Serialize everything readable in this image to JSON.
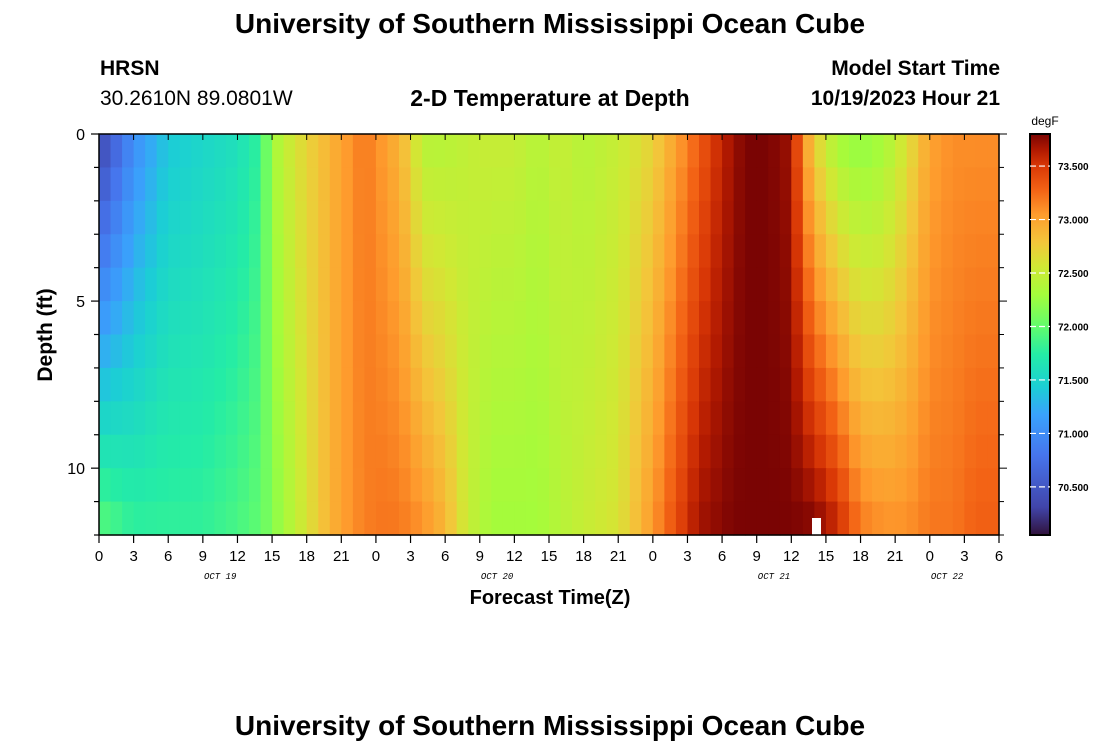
{
  "header": {
    "title": "University of Southern Mississippi Ocean Cube",
    "station": "HRSN",
    "coords": "30.2610N  89.0801W",
    "plot_title": "2-D Temperature at Depth",
    "model_label": "Model Start Time",
    "model_time": "10/19/2023 Hour 21"
  },
  "footer": {
    "title": "University of Southern Mississippi Ocean Cube"
  },
  "chart_data": {
    "type": "heatmap",
    "title": "2-D Temperature at Depth",
    "xlabel": "Forecast Time(Z)",
    "ylabel": "Depth (ft)",
    "x_ticks": [
      "0",
      "3",
      "6",
      "9",
      "12",
      "15",
      "18",
      "21",
      "0",
      "3",
      "6",
      "9",
      "12",
      "15",
      "18",
      "21",
      "0",
      "3",
      "6",
      "9",
      "12",
      "15",
      "18",
      "21",
      "0",
      "3",
      "6"
    ],
    "x_range_hours": [
      0,
      78
    ],
    "date_labels": [
      {
        "label": "OCT 19",
        "hour": 10.5
      },
      {
        "label": "OCT 20",
        "hour": 34.5
      },
      {
        "label": "OCT 21",
        "hour": 58.5
      },
      {
        "label": "OCT 22",
        "hour": 73.5
      }
    ],
    "y_ticks": [
      "0",
      "5",
      "10"
    ],
    "y_tick_values": [
      0,
      5,
      10
    ],
    "ylim": [
      0,
      12
    ],
    "colorbar": {
      "unit": "degF",
      "min": 70.05,
      "max": 73.8,
      "tick_labels": [
        "73.500",
        "73.000",
        "72.500",
        "72.000",
        "71.500",
        "71.000",
        "70.500"
      ],
      "tick_values": [
        73.5,
        73.0,
        72.5,
        72.0,
        71.5,
        71.0,
        70.5
      ]
    },
    "depth_rows_ft": [
      0,
      1,
      2,
      3,
      4,
      5,
      6,
      7,
      8,
      9,
      10,
      11,
      12
    ],
    "surface_profile": [
      [
        0,
        70.3
      ],
      [
        3,
        71.0
      ],
      [
        6,
        71.4
      ],
      [
        9,
        71.5
      ],
      [
        12,
        71.6
      ],
      [
        14,
        71.8
      ],
      [
        15,
        72.3
      ],
      [
        17,
        72.6
      ],
      [
        19,
        72.8
      ],
      [
        21,
        73.0
      ],
      [
        23,
        73.2
      ],
      [
        24,
        73.1
      ],
      [
        26,
        72.9
      ],
      [
        27,
        72.7
      ],
      [
        28,
        72.4
      ],
      [
        30,
        72.4
      ],
      [
        33,
        72.5
      ],
      [
        36,
        72.5
      ],
      [
        38,
        72.4
      ],
      [
        40,
        72.5
      ],
      [
        42,
        72.4
      ],
      [
        45,
        72.5
      ],
      [
        48,
        72.7
      ],
      [
        50,
        73.0
      ],
      [
        52,
        73.3
      ],
      [
        54,
        73.6
      ],
      [
        56,
        73.8
      ],
      [
        58,
        73.8
      ],
      [
        60,
        73.7
      ],
      [
        61,
        73.1
      ],
      [
        62,
        72.7
      ],
      [
        63,
        72.5
      ],
      [
        64,
        72.3
      ],
      [
        66,
        72.2
      ],
      [
        68,
        72.3
      ],
      [
        70,
        72.6
      ],
      [
        72,
        73.0
      ],
      [
        74,
        73.1
      ],
      [
        76,
        73.1
      ],
      [
        78,
        73.1
      ]
    ],
    "bottom_profile": [
      [
        0,
        72.0
      ],
      [
        3,
        71.8
      ],
      [
        6,
        71.8
      ],
      [
        9,
        71.8
      ],
      [
        12,
        71.9
      ],
      [
        14,
        72.0
      ],
      [
        16,
        72.3
      ],
      [
        18,
        72.6
      ],
      [
        20,
        72.9
      ],
      [
        22,
        73.1
      ],
      [
        24,
        73.2
      ],
      [
        26,
        73.2
      ],
      [
        28,
        73.1
      ],
      [
        30,
        72.9
      ],
      [
        31,
        72.7
      ],
      [
        32,
        72.5
      ],
      [
        34,
        72.3
      ],
      [
        36,
        72.3
      ],
      [
        38,
        72.3
      ],
      [
        40,
        72.4
      ],
      [
        42,
        72.5
      ],
      [
        45,
        72.6
      ],
      [
        47,
        72.9
      ],
      [
        50,
        73.4
      ],
      [
        52,
        73.7
      ],
      [
        55,
        73.8
      ],
      [
        58,
        73.8
      ],
      [
        60,
        73.8
      ],
      [
        62,
        73.8
      ],
      [
        64,
        73.6
      ],
      [
        66,
        73.2
      ],
      [
        68,
        73.1
      ],
      [
        70,
        73.1
      ],
      [
        72,
        73.2
      ],
      [
        74,
        73.2
      ],
      [
        76,
        73.3
      ],
      [
        78,
        73.3
      ]
    ]
  }
}
